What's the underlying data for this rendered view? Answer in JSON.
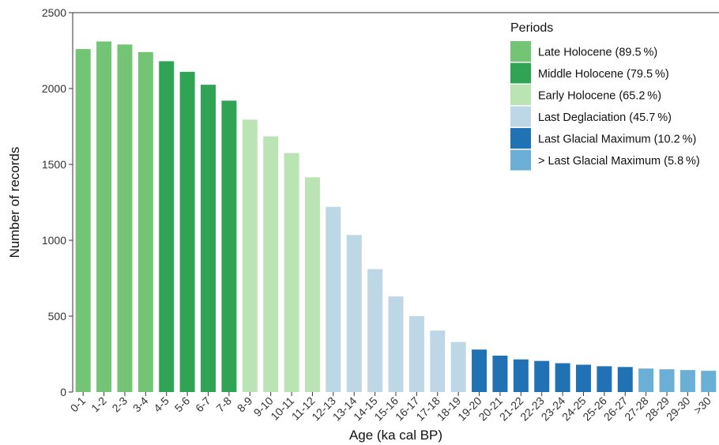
{
  "chart_data": {
    "type": "bar",
    "xlabel": "Age (ka cal BP)",
    "ylabel": "Number of records",
    "ylim": [
      0,
      2500
    ],
    "yticks": [
      0,
      500,
      1000,
      1500,
      2000,
      2500
    ],
    "grid": false,
    "legend_position": "top-right",
    "legend_title": "Periods",
    "periods": [
      {
        "name": "Late Holocene (89.5 %)",
        "color": "#74c476"
      },
      {
        "name": "Middle Holocene (79.5 %)",
        "color": "#31a354"
      },
      {
        "name": "Early Holocene (65.2 %)",
        "color": "#bae4b3"
      },
      {
        "name": "Last Deglaciation (45.7 %)",
        "color": "#bdd7e7"
      },
      {
        "name": "Last Glacial Maximum (10.2 %)",
        "color": "#2171b5"
      },
      {
        "name": "> Last Glacial Maximum (5.8 %)",
        "color": "#6baed6"
      }
    ],
    "categories": [
      "0-1",
      "1-2",
      "2-3",
      "3-4",
      "4-5",
      "5-6",
      "6-7",
      "7-8",
      "8-9",
      "9-10",
      "10-11",
      "11-12",
      "12-13",
      "13-14",
      "14-15",
      "15-16",
      "16-17",
      "17-18",
      "18-19",
      "19-20",
      "20-21",
      "21-22",
      "22-23",
      "23-24",
      "24-25",
      "25-26",
      "26-27",
      "27-28",
      "28-29",
      "29-30",
      ">30"
    ],
    "values": [
      2260,
      2310,
      2290,
      2240,
      2180,
      2110,
      2025,
      1920,
      1795,
      1685,
      1575,
      1415,
      1220,
      1035,
      810,
      630,
      500,
      405,
      330,
      280,
      240,
      215,
      205,
      190,
      180,
      170,
      165,
      155,
      150,
      145,
      140
    ],
    "period_index": [
      0,
      0,
      0,
      0,
      1,
      1,
      1,
      1,
      2,
      2,
      2,
      2,
      3,
      3,
      3,
      3,
      3,
      3,
      3,
      4,
      4,
      4,
      4,
      4,
      4,
      4,
      4,
      5,
      5,
      5,
      5
    ]
  }
}
